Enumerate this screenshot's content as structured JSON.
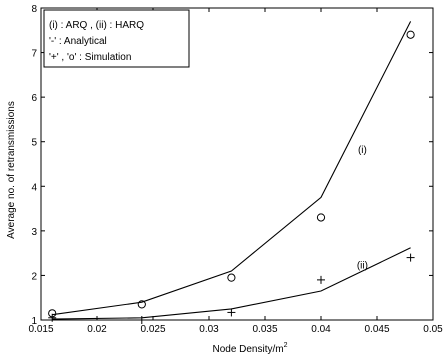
{
  "chart_data": {
    "type": "line",
    "title": "",
    "xlabel": "Node Density/m",
    "xlabel_superscript": "2",
    "ylabel": "Average no. of retransmissions",
    "xlim": [
      0.015,
      0.05
    ],
    "ylim": [
      1,
      8
    ],
    "x_ticks": [
      "0.015",
      "0.02",
      "0.025",
      "0.03",
      "0.035",
      "0.04",
      "0.045",
      "0.05"
    ],
    "y_ticks": [
      "1",
      "2",
      "3",
      "4",
      "5",
      "6",
      "7",
      "8"
    ],
    "grid": false,
    "legend_position": "top-left",
    "legend": [
      "(i) : ARQ   ,   (ii) : HARQ",
      "'-' : Analytical",
      "'+' , 'o' : Simulation"
    ],
    "series": [
      {
        "label": "(i)",
        "kind": "analytical",
        "x": [
          0.016,
          0.024,
          0.032,
          0.04,
          0.048
        ],
        "values": [
          1.12,
          1.4,
          2.1,
          3.75,
          7.7
        ]
      },
      {
        "label": "(i)",
        "kind": "simulation",
        "marker": "o",
        "x": [
          0.016,
          0.024,
          0.032,
          0.04,
          0.048
        ],
        "values": [
          1.15,
          1.35,
          1.95,
          3.3,
          7.4
        ]
      },
      {
        "label": "(ii)",
        "kind": "analytical",
        "x": [
          0.016,
          0.024,
          0.032,
          0.04,
          0.048
        ],
        "values": [
          1.02,
          1.05,
          1.25,
          1.65,
          2.62
        ]
      },
      {
        "label": "(ii)",
        "kind": "simulation",
        "marker": "+",
        "x": [
          0.016,
          0.024,
          0.032,
          0.04,
          0.048
        ],
        "values": [
          1.05,
          1.0,
          1.17,
          1.9,
          2.4
        ]
      }
    ],
    "annotations": [
      {
        "text": "(i)",
        "x": 0.0433,
        "y": 4.75
      },
      {
        "text": "(ii)",
        "x": 0.0432,
        "y": 2.15
      }
    ]
  }
}
